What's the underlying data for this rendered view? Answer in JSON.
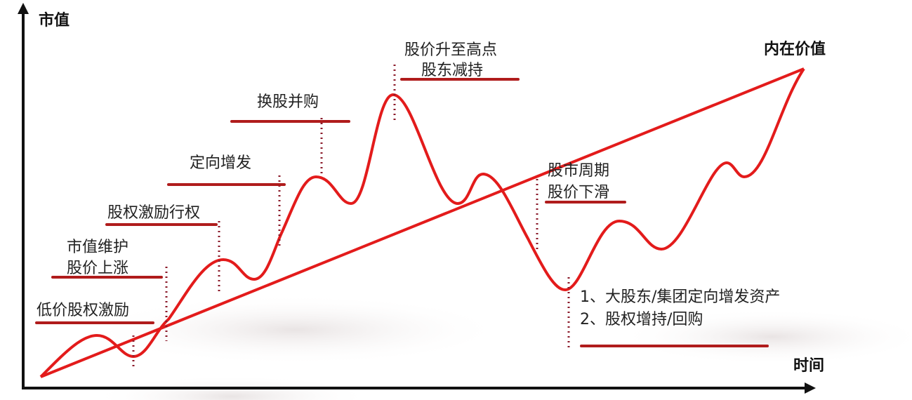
{
  "axes": {
    "y_label": "市值",
    "x_label": "时间"
  },
  "intrinsic_value_label": "内在价值",
  "annotations": [
    {
      "id": "low-price-equity-incentive",
      "lines": [
        "低价股权激励"
      ]
    },
    {
      "id": "market-cap-maintenance",
      "lines": [
        "市值维护",
        "股价上涨"
      ]
    },
    {
      "id": "equity-incentive-exercise",
      "lines": [
        "股权激励行权"
      ]
    },
    {
      "id": "private-placement",
      "lines": [
        "定向增发"
      ]
    },
    {
      "id": "share-swap-merger",
      "lines": [
        "换股并购"
      ]
    },
    {
      "id": "price-peak",
      "lines": [
        "股价升至高点",
        "股东减持"
      ]
    },
    {
      "id": "market-cycle",
      "lines": [
        "股市周期",
        "股价下滑"
      ]
    },
    {
      "id": "recovery-actions",
      "lines": [
        "1、大股东/集团定向增发资产",
        "2、股权增持/回购"
      ]
    }
  ],
  "colors": {
    "curve": "#e31b1b",
    "underline": "#b01c1c",
    "dotted": "#8b1a2a",
    "axis": "#111111"
  }
}
